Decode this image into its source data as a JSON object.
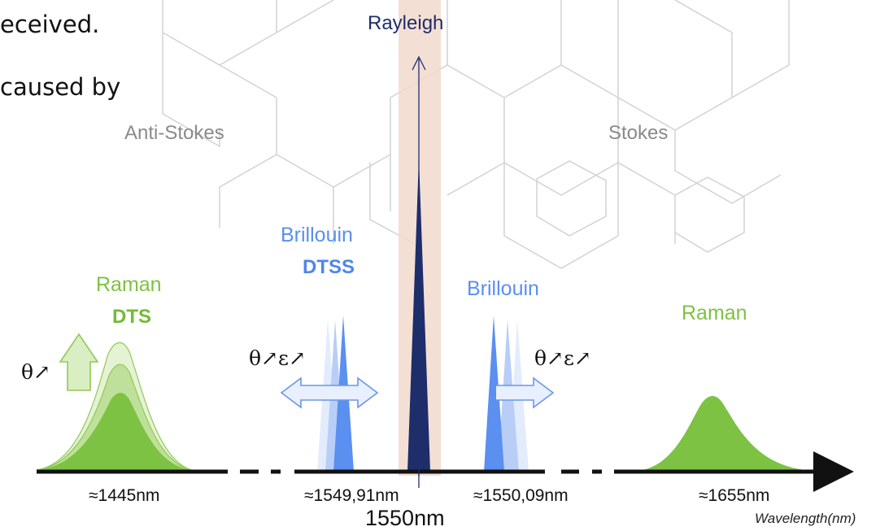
{
  "intro": {
    "line1": "eceived.",
    "line2": "caused by"
  },
  "labels": {
    "rayleigh": "Rayleigh",
    "anti_stokes": "Anti-Stokes",
    "stokes": "Stokes",
    "brillouin_left": "Brillouin",
    "brillouin_left_tag": "DTSS",
    "brillouin_right": "Brillouin",
    "raman_left": "Raman",
    "raman_left_tag": "DTS",
    "raman_right": "Raman",
    "theta_left": "θ↗",
    "theta_eps_left": "θ↗ε↗",
    "theta_eps_right": "θ↗ε↗"
  },
  "axis": {
    "tick_1445": "≈1445nm",
    "tick_154991": "≈1549,91nm",
    "tick_155009": "≈1550,09nm",
    "tick_1655": "≈1655nm",
    "center": "1550nm",
    "unit_label": "Wavelength(nm)"
  },
  "colors": {
    "raman_green": "#7dc242",
    "brillouin_blue": "#5b8ff0",
    "rayleigh_navy": "#1e2e6b",
    "rayleigh_band": "#f2d9cc",
    "hex_gray": "#d2d2d2"
  }
}
